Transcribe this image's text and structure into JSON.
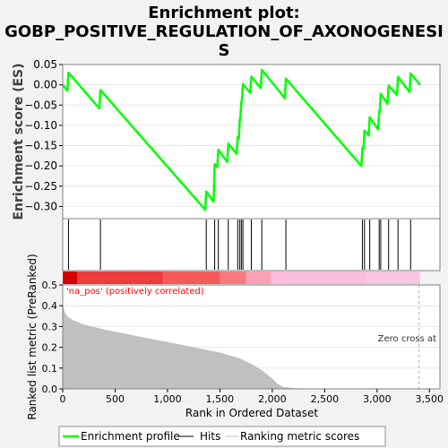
{
  "title_line1": "Enrichment plot:",
  "title_line2": "GOBP_POSITIVE_REGULATION_OF_AXONOGENESI",
  "title_line3": "S",
  "legend": {
    "enrichment_profile": "Enrichment profile",
    "hits": "Hits",
    "ranking": "Ranking metric scores"
  },
  "colors": {
    "background": "#f2f2f2",
    "panel": "#ffffff",
    "es_line": "#00ff00",
    "hits": "#000000",
    "metric_fill": "#c0c0c0",
    "pos_label": "#ff0000",
    "zero_line": "#b0b0b0"
  },
  "chart_data": [
    {
      "type": "line",
      "name": "enrichment-profile",
      "ylabel": "Enrichment score (ES)",
      "xlim": [
        0,
        3600
      ],
      "ylim": [
        -0.33,
        0.05
      ],
      "yticks": [
        0.05,
        0.0,
        -0.05,
        -0.1,
        -0.15,
        -0.2,
        -0.25,
        -0.3
      ],
      "ytick_labels": [
        "0.05",
        "0.00",
        "−0.05",
        "−0.10",
        "−0.15",
        "−0.20",
        "−0.25",
        "−0.30"
      ],
      "points": [
        [
          0,
          0.0
        ],
        [
          45,
          -0.015
        ],
        [
          55,
          0.03
        ],
        [
          350,
          -0.058
        ],
        [
          360,
          -0.013
        ],
        [
          1360,
          -0.308
        ],
        [
          1370,
          -0.263
        ],
        [
          1440,
          -0.288
        ],
        [
          1450,
          -0.196
        ],
        [
          1475,
          -0.202
        ],
        [
          1485,
          -0.16
        ],
        [
          1570,
          -0.19
        ],
        [
          1580,
          -0.145
        ],
        [
          1660,
          -0.17
        ],
        [
          1670,
          -0.128
        ],
        [
          1680,
          -0.133
        ],
        [
          1690,
          -0.085
        ],
        [
          1695,
          -0.087
        ],
        [
          1705,
          -0.04
        ],
        [
          1710,
          -0.04
        ],
        [
          1720,
          0.002
        ],
        [
          1790,
          -0.02
        ],
        [
          1800,
          0.02
        ],
        [
          1890,
          -0.008
        ],
        [
          1900,
          0.037
        ],
        [
          2120,
          -0.033
        ],
        [
          2130,
          0.015
        ],
        [
          2850,
          -0.2
        ],
        [
          2860,
          -0.155
        ],
        [
          2870,
          -0.158
        ],
        [
          2880,
          -0.113
        ],
        [
          2920,
          -0.125
        ],
        [
          2930,
          -0.08
        ],
        [
          3010,
          -0.11
        ],
        [
          3020,
          -0.065
        ],
        [
          3025,
          -0.067
        ],
        [
          3035,
          -0.022
        ],
        [
          3100,
          -0.047
        ],
        [
          3110,
          -0.002
        ],
        [
          3190,
          -0.025
        ],
        [
          3200,
          0.02
        ],
        [
          3310,
          -0.018
        ],
        [
          3320,
          0.028
        ],
        [
          3410,
          0.0
        ]
      ]
    },
    {
      "type": "bar",
      "name": "hits",
      "x": [
        55,
        360,
        1370,
        1450,
        1485,
        1580,
        1670,
        1690,
        1705,
        1720,
        1800,
        1900,
        2130,
        2860,
        2880,
        2930,
        3020,
        3035,
        3110,
        3200,
        3320
      ]
    },
    {
      "type": "area",
      "name": "ranked-list-metric",
      "xlabel": "Rank in Ordered Dataset",
      "ylabel": "Ranked list metric (PreRanked)",
      "xlim": [
        0,
        3600
      ],
      "ylim": [
        0,
        0.5
      ],
      "xticks": [
        0,
        500,
        1000,
        1500,
        2000,
        2500,
        3000,
        3500
      ],
      "xtick_labels": [
        "0",
        "500",
        "1,000",
        "1,500",
        "2,000",
        "2,500",
        "3,000",
        "3,500"
      ],
      "yticks": [
        0.0,
        0.1,
        0.2,
        0.3,
        0.4,
        0.5
      ],
      "ytick_labels": [
        "0.0",
        "0.1",
        "0.2",
        "0.3",
        "0.4",
        "0.5"
      ],
      "points": [
        [
          0,
          0.41
        ],
        [
          20,
          0.37
        ],
        [
          50,
          0.345
        ],
        [
          100,
          0.33
        ],
        [
          200,
          0.31
        ],
        [
          400,
          0.285
        ],
        [
          600,
          0.265
        ],
        [
          800,
          0.245
        ],
        [
          1000,
          0.225
        ],
        [
          1200,
          0.205
        ],
        [
          1400,
          0.185
        ],
        [
          1500,
          0.175
        ],
        [
          1600,
          0.16
        ],
        [
          1700,
          0.145
        ],
        [
          1800,
          0.12
        ],
        [
          1900,
          0.09
        ],
        [
          2000,
          0.05
        ],
        [
          2050,
          0.025
        ],
        [
          2100,
          0.01
        ],
        [
          2200,
          0.003
        ],
        [
          2400,
          0.0
        ],
        [
          3410,
          0.0
        ]
      ],
      "zero_cross_x": 3400,
      "zero_cross_label": "Zero cross at",
      "positive_label": "'na_pos' (positively correlated)"
    }
  ],
  "gradient_segments": [
    {
      "from": 0,
      "to": 140,
      "color": "#d40000"
    },
    {
      "from": 140,
      "to": 960,
      "color": "#ee3b3b"
    },
    {
      "from": 960,
      "to": 1500,
      "color": "#f55a5a"
    },
    {
      "from": 1500,
      "to": 1750,
      "color": "#f87a80"
    },
    {
      "from": 1750,
      "to": 1990,
      "color": "#fca0b8"
    },
    {
      "from": 1990,
      "to": 2900,
      "color": "#fbbddd"
    },
    {
      "from": 2900,
      "to": 3410,
      "color": "#f7c6e2"
    }
  ]
}
